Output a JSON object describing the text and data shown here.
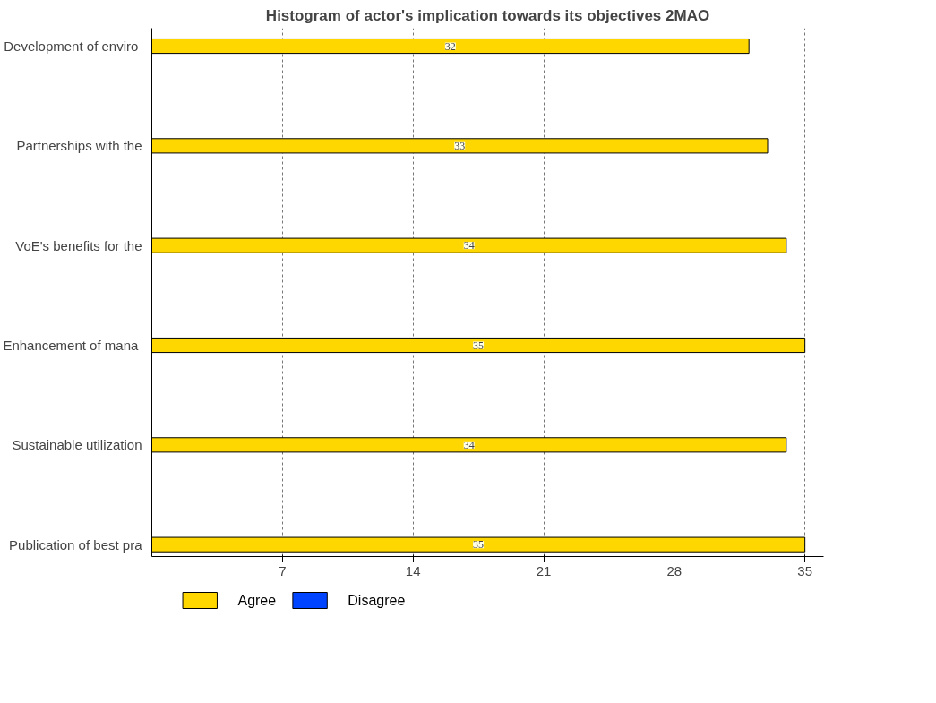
{
  "chart_data": {
    "type": "bar",
    "orientation": "horizontal",
    "title": "Histogram of actor's implication towards its objectives 2MAO",
    "categories": [
      "Development  of enviro",
      "Partnerships with the",
      "VoE's benefits for the",
      "Enhancement  of mana",
      "Sustainable utilization",
      "Publication of best pra"
    ],
    "series": [
      {
        "name": "Agree",
        "color": "#ffd700",
        "values": [
          32,
          33,
          34,
          35,
          34,
          35
        ],
        "value_labels": [
          "32",
          "33",
          "34",
          "35",
          "34",
          "35"
        ]
      },
      {
        "name": "Disagree",
        "color": "#0044ff",
        "values": [
          0,
          0,
          0,
          0,
          0,
          0
        ]
      }
    ],
    "xlim": [
      0,
      36
    ],
    "xticks": [
      7,
      14,
      21,
      28,
      35
    ],
    "grid": "x",
    "legend": "bottom"
  }
}
